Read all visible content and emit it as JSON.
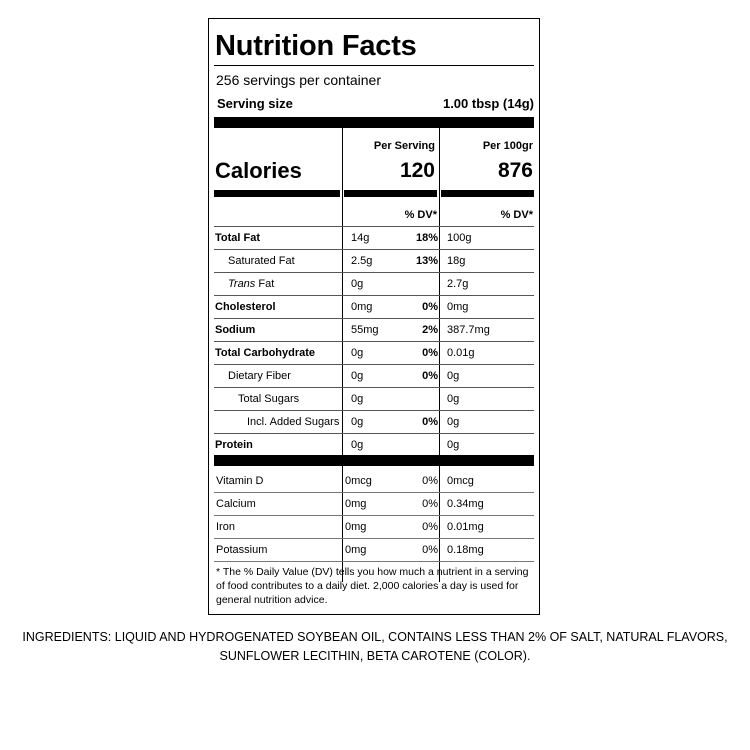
{
  "label": {
    "title": "Nutrition Facts",
    "servings": "256 servings per container",
    "serving_size_label": "Serving size",
    "serving_size_value": "1.00 tbsp (14g)",
    "per_serving_header": "Per Serving",
    "per_100_header": "Per 100gr",
    "calories_label": "Calories",
    "calories_serving": "120",
    "calories_100": "876",
    "dv_header": "% DV*",
    "nutrients": [
      {
        "name": "Total Fat",
        "amount": "14g",
        "dv": "18%",
        "per100": "100g"
      },
      {
        "name": "Saturated Fat",
        "amount": "2.5g",
        "dv": "13%",
        "per100": "18g"
      },
      {
        "name": "Trans",
        "name_suffix": " Fat",
        "amount": "0g",
        "dv": "",
        "per100": "2.7g"
      },
      {
        "name": "Cholesterol",
        "amount": "0mg",
        "dv": "0%",
        "per100": "0mg"
      },
      {
        "name": "Sodium",
        "amount": "55mg",
        "dv": "2%",
        "per100": "387.7mg"
      },
      {
        "name": "Total Carbohydrate",
        "amount": "0g",
        "dv": "0%",
        "per100": "0.01g"
      },
      {
        "name": "Dietary Fiber",
        "amount": "0g",
        "dv": "0%",
        "per100": "0g"
      },
      {
        "name": "Total Sugars",
        "amount": "0g",
        "dv": "",
        "per100": "0g"
      },
      {
        "name": "Incl. Added Sugars",
        "amount": "0g",
        "dv": "0%",
        "per100": "0g"
      },
      {
        "name": "Protein",
        "amount": "0g",
        "dv": "",
        "per100": "0g"
      }
    ],
    "vitamins": [
      {
        "name": "Vitamin D",
        "amount": "0mcg",
        "dv": "0%",
        "per100": "0mcg"
      },
      {
        "name": "Calcium",
        "amount": "0mg",
        "dv": "0%",
        "per100": "0.34mg"
      },
      {
        "name": "Iron",
        "amount": "0mg",
        "dv": "0%",
        "per100": "0.01mg"
      },
      {
        "name": "Potassium",
        "amount": "0mg",
        "dv": "0%",
        "per100": "0.18mg"
      }
    ],
    "footnote": "* The % Daily Value (DV) tells you how much a nutrient in a serving of food contributes to a daily diet. 2,000 calories a day is used for general nutrition advice."
  },
  "ingredients": "INGREDIENTS: LIQUID AND HYDROGENATED SOYBEAN OIL, CONTAINS LESS THAN 2% OF SALT, NATURAL FLAVORS, SUNFLOWER LECITHIN, BETA CAROTENE (COLOR)."
}
